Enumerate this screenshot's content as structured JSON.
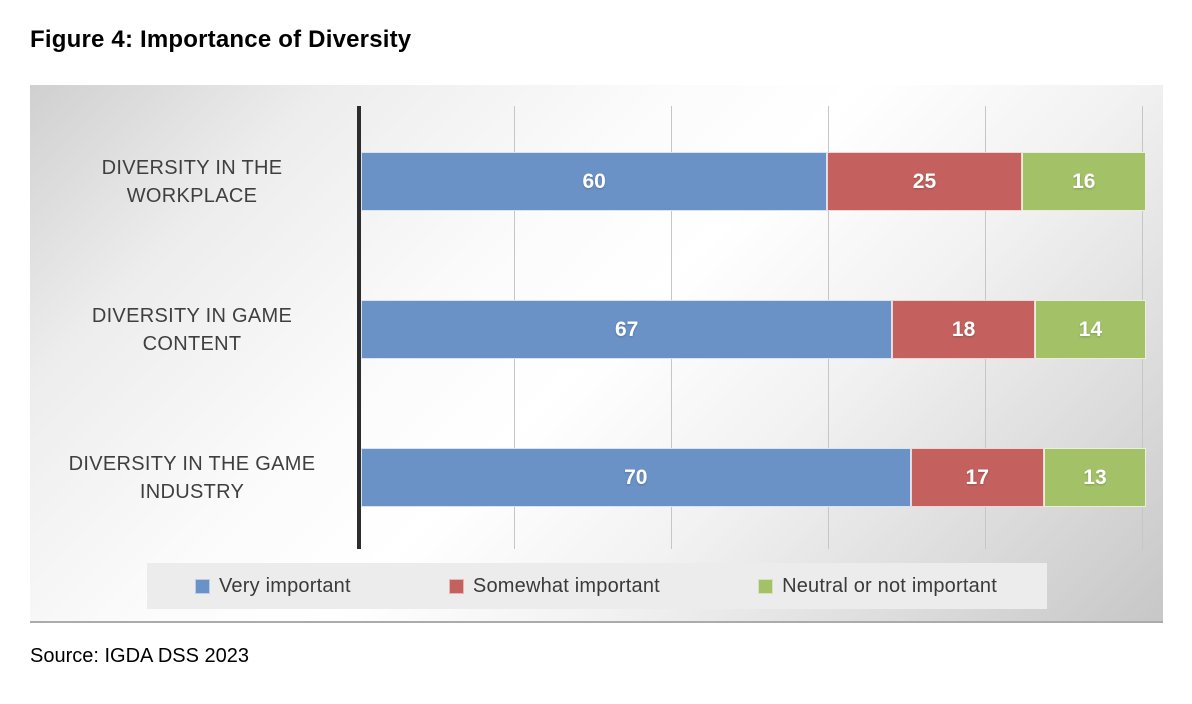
{
  "title": "Figure 4: Importance of Diversity",
  "source_note": "Source: IGDA DSS 2023",
  "chart_data": {
    "type": "bar",
    "orientation": "horizontal",
    "stacked": true,
    "normalized_100_percent": true,
    "categories": [
      "DIVERSITY IN THE WORKPLACE",
      "DIVERSITY IN GAME CONTENT",
      "DIVERSITY IN THE GAME INDUSTRY"
    ],
    "category_lines": [
      [
        "DIVERSITY IN THE",
        "WORKPLACE"
      ],
      [
        "DIVERSITY IN GAME",
        "CONTENT"
      ],
      [
        "DIVERSITY IN THE GAME",
        "INDUSTRY"
      ]
    ],
    "series": [
      {
        "name": "Very important",
        "color": "#6A92C7",
        "values": [
          60,
          67,
          70
        ]
      },
      {
        "name": "Somewhat important",
        "color": "#C4615E",
        "values": [
          25,
          18,
          17
        ]
      },
      {
        "name": "Neutral or not important",
        "color": "#A3C268",
        "values": [
          16,
          14,
          13
        ]
      }
    ],
    "value_labels": "inside-center",
    "xlabel": "",
    "ylabel": "",
    "xlim": [
      0,
      100
    ],
    "gridline_interval": 20,
    "grid": true,
    "legend_position": "bottom",
    "axis_color": "#2d2d2d",
    "gridline_color": "#c6c6c6",
    "legend_background": "#ececec",
    "label_color": "#3f3f3f"
  }
}
